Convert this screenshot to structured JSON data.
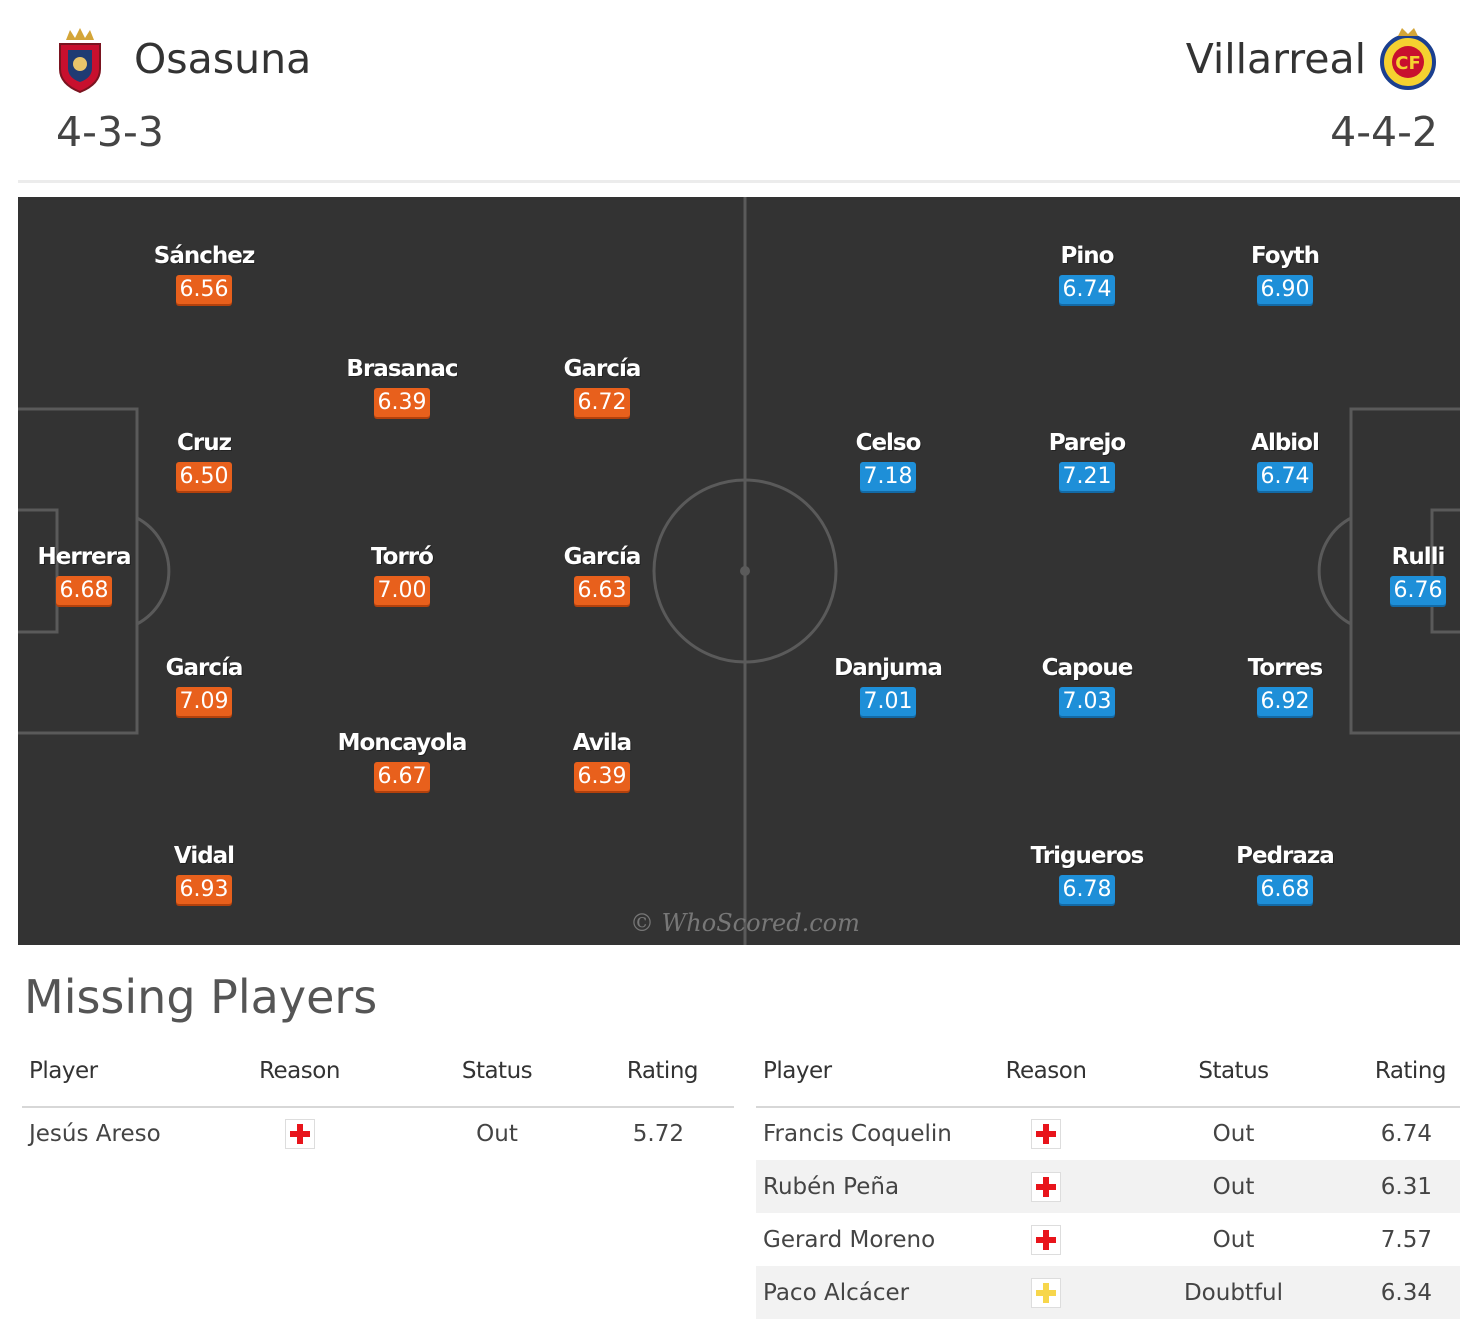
{
  "home": {
    "name": "Osasuna",
    "formation": "4-3-3",
    "players": [
      {
        "name": "Sánchez",
        "rating": "6.56"
      },
      {
        "name": "Brasanac",
        "rating": "6.39"
      },
      {
        "name": "García",
        "rating": "6.72"
      },
      {
        "name": "Cruz",
        "rating": "6.50"
      },
      {
        "name": "Herrera",
        "rating": "6.68"
      },
      {
        "name": "Torró",
        "rating": "7.00"
      },
      {
        "name": "García",
        "rating": "6.63"
      },
      {
        "name": "García",
        "rating": "7.09"
      },
      {
        "name": "Moncayola",
        "rating": "6.67"
      },
      {
        "name": "Avila",
        "rating": "6.39"
      },
      {
        "name": "Vidal",
        "rating": "6.93"
      }
    ]
  },
  "away": {
    "name": "Villarreal",
    "formation": "4-4-2",
    "players": [
      {
        "name": "Pino",
        "rating": "6.74"
      },
      {
        "name": "Foyth",
        "rating": "6.90"
      },
      {
        "name": "Celso",
        "rating": "7.18"
      },
      {
        "name": "Parejo",
        "rating": "7.21"
      },
      {
        "name": "Albiol",
        "rating": "6.74"
      },
      {
        "name": "Rulli",
        "rating": "6.76"
      },
      {
        "name": "Danjuma",
        "rating": "7.01"
      },
      {
        "name": "Capoue",
        "rating": "7.03"
      },
      {
        "name": "Torres",
        "rating": "6.92"
      },
      {
        "name": "Trigueros",
        "rating": "6.78"
      },
      {
        "name": "Pedraza",
        "rating": "6.68"
      }
    ]
  },
  "watermark": "© WhoScored.com",
  "missing": {
    "title": "Missing Players",
    "headers": {
      "player": "Player",
      "reason": "Reason",
      "status": "Status",
      "rating": "Rating"
    },
    "home": [
      {
        "player": "Jesús Areso",
        "reason_icon": "injury-icon",
        "status": "Out",
        "rating": "5.72"
      }
    ],
    "away": [
      {
        "player": "Francis Coquelin",
        "reason_icon": "injury-icon",
        "status": "Out",
        "rating": "6.74"
      },
      {
        "player": "Rubén Peña",
        "reason_icon": "injury-icon",
        "status": "Out",
        "rating": "6.31"
      },
      {
        "player": "Gerard Moreno",
        "reason_icon": "injury-icon",
        "status": "Out",
        "rating": "7.57"
      },
      {
        "player": "Paco Alcácer",
        "reason_icon": "doubtful-icon",
        "status": "Doubtful",
        "rating": "6.34"
      }
    ]
  },
  "colors": {
    "pitch": "#333333",
    "home_rating": "#e8601c",
    "away_rating": "#1e8fd8",
    "missing_rating": "#e63c1a",
    "injury": "#e8141b",
    "doubtful": "#f7d64b"
  }
}
